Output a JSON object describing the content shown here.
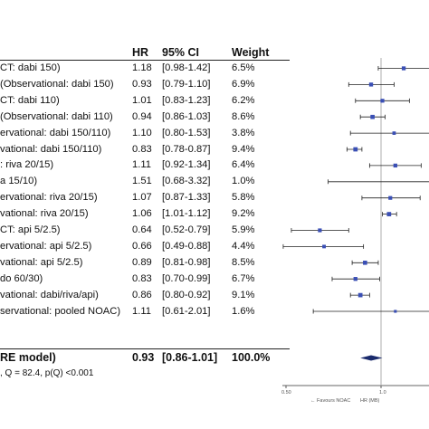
{
  "header": {
    "hr": "HR",
    "ci": "95% CI",
    "weight": "Weight"
  },
  "rows": [
    {
      "label": "CT: dabi 150)",
      "hr": "1.18",
      "ci": "[0.98-1.42]",
      "weight": "6.5%"
    },
    {
      "label": "(Observational: dabi 150)",
      "hr": "0.93",
      "ci": "[0.79-1.10]",
      "weight": "6.9%"
    },
    {
      "label": "CT: dabi 110)",
      "hr": "1.01",
      "ci": "[0.83-1.23]",
      "weight": "6.2%"
    },
    {
      "label": "(Observational: dabi 110)",
      "hr": "0.94",
      "ci": "[0.86-1.03]",
      "weight": "8.6%"
    },
    {
      "label": "ervational: dabi 150/110)",
      "hr": "1.10",
      "ci": "[0.80-1.53]",
      "weight": "3.8%"
    },
    {
      "label": "vational: dabi 150/110)",
      "hr": "0.83",
      "ci": "[0.78-0.87]",
      "weight": "9.4%"
    },
    {
      "label": ": riva 20/15)",
      "hr": "1.11",
      "ci": "[0.92-1.34]",
      "weight": "6.4%"
    },
    {
      "label": "a 15/10)",
      "hr": "1.51",
      "ci": "[0.68-3.32]",
      "weight": "1.0%"
    },
    {
      "label": "ervational: riva 20/15)",
      "hr": "1.07",
      "ci": "[0.87-1.33]",
      "weight": "5.8%"
    },
    {
      "label": "vational: riva 20/15)",
      "hr": "1.06",
      "ci": "[1.01-1.12]",
      "weight": "9.2%"
    },
    {
      "label": "CT: api 5/2.5)",
      "hr": "0.64",
      "ci": "[0.52-0.79]",
      "weight": "5.9%"
    },
    {
      "label": "ervational: api 5/2.5)",
      "hr": "0.66",
      "ci": "[0.49-0.88]",
      "weight": "4.4%"
    },
    {
      "label": "vational: api 5/2.5)",
      "hr": "0.89",
      "ci": "[0.81-0.98]",
      "weight": "8.5%"
    },
    {
      "label": "do 60/30)",
      "hr": "0.83",
      "ci": "[0.70-0.99]",
      "weight": "6.7%"
    },
    {
      "label": "vational: dabi/riva/api)",
      "hr": "0.86",
      "ci": "[0.80-0.92]",
      "weight": "9.1%"
    },
    {
      "label": "servational: pooled NOAC)",
      "hr": "1.11",
      "ci": "[0.61-2.01]",
      "weight": "1.6%"
    }
  ],
  "summary": {
    "label": "RE model)",
    "hr": "0.93",
    "ci": "[0.86-1.01]",
    "weight": "100.0%"
  },
  "heterogeneity": ", Q = 82.4, p(Q) <0.001",
  "axis": {
    "tick_low": "0.50",
    "tick_mid": "1.0",
    "favours_noac": "← Favours NOAC",
    "axis_title": "HR (MB)"
  },
  "colors": {
    "marker": "#3a4fb5",
    "ci_line": "#222222",
    "summary": "#1a2a6c"
  },
  "chart_data": {
    "type": "forest",
    "x_scale": "log",
    "reference_line": 1.0,
    "points": [
      {
        "hr": 1.18,
        "lo": 0.98,
        "hi": 1.42,
        "weight": 6.5
      },
      {
        "hr": 0.93,
        "lo": 0.79,
        "hi": 1.1,
        "weight": 6.9
      },
      {
        "hr": 1.01,
        "lo": 0.83,
        "hi": 1.23,
        "weight": 6.2
      },
      {
        "hr": 0.94,
        "lo": 0.86,
        "hi": 1.03,
        "weight": 8.6
      },
      {
        "hr": 1.1,
        "lo": 0.8,
        "hi": 1.53,
        "weight": 3.8
      },
      {
        "hr": 0.83,
        "lo": 0.78,
        "hi": 0.87,
        "weight": 9.4
      },
      {
        "hr": 1.11,
        "lo": 0.92,
        "hi": 1.34,
        "weight": 6.4
      },
      {
        "hr": 1.51,
        "lo": 0.68,
        "hi": 3.32,
        "weight": 1.0
      },
      {
        "hr": 1.07,
        "lo": 0.87,
        "hi": 1.33,
        "weight": 5.8
      },
      {
        "hr": 1.06,
        "lo": 1.01,
        "hi": 1.12,
        "weight": 9.2
      },
      {
        "hr": 0.64,
        "lo": 0.52,
        "hi": 0.79,
        "weight": 5.9
      },
      {
        "hr": 0.66,
        "lo": 0.49,
        "hi": 0.88,
        "weight": 4.4
      },
      {
        "hr": 0.89,
        "lo": 0.81,
        "hi": 0.98,
        "weight": 8.5
      },
      {
        "hr": 0.83,
        "lo": 0.7,
        "hi": 0.99,
        "weight": 6.7
      },
      {
        "hr": 0.86,
        "lo": 0.8,
        "hi": 0.92,
        "weight": 9.1
      },
      {
        "hr": 1.11,
        "lo": 0.61,
        "hi": 2.01,
        "weight": 1.6
      }
    ],
    "summary": {
      "hr": 0.93,
      "lo": 0.86,
      "hi": 1.01
    }
  }
}
